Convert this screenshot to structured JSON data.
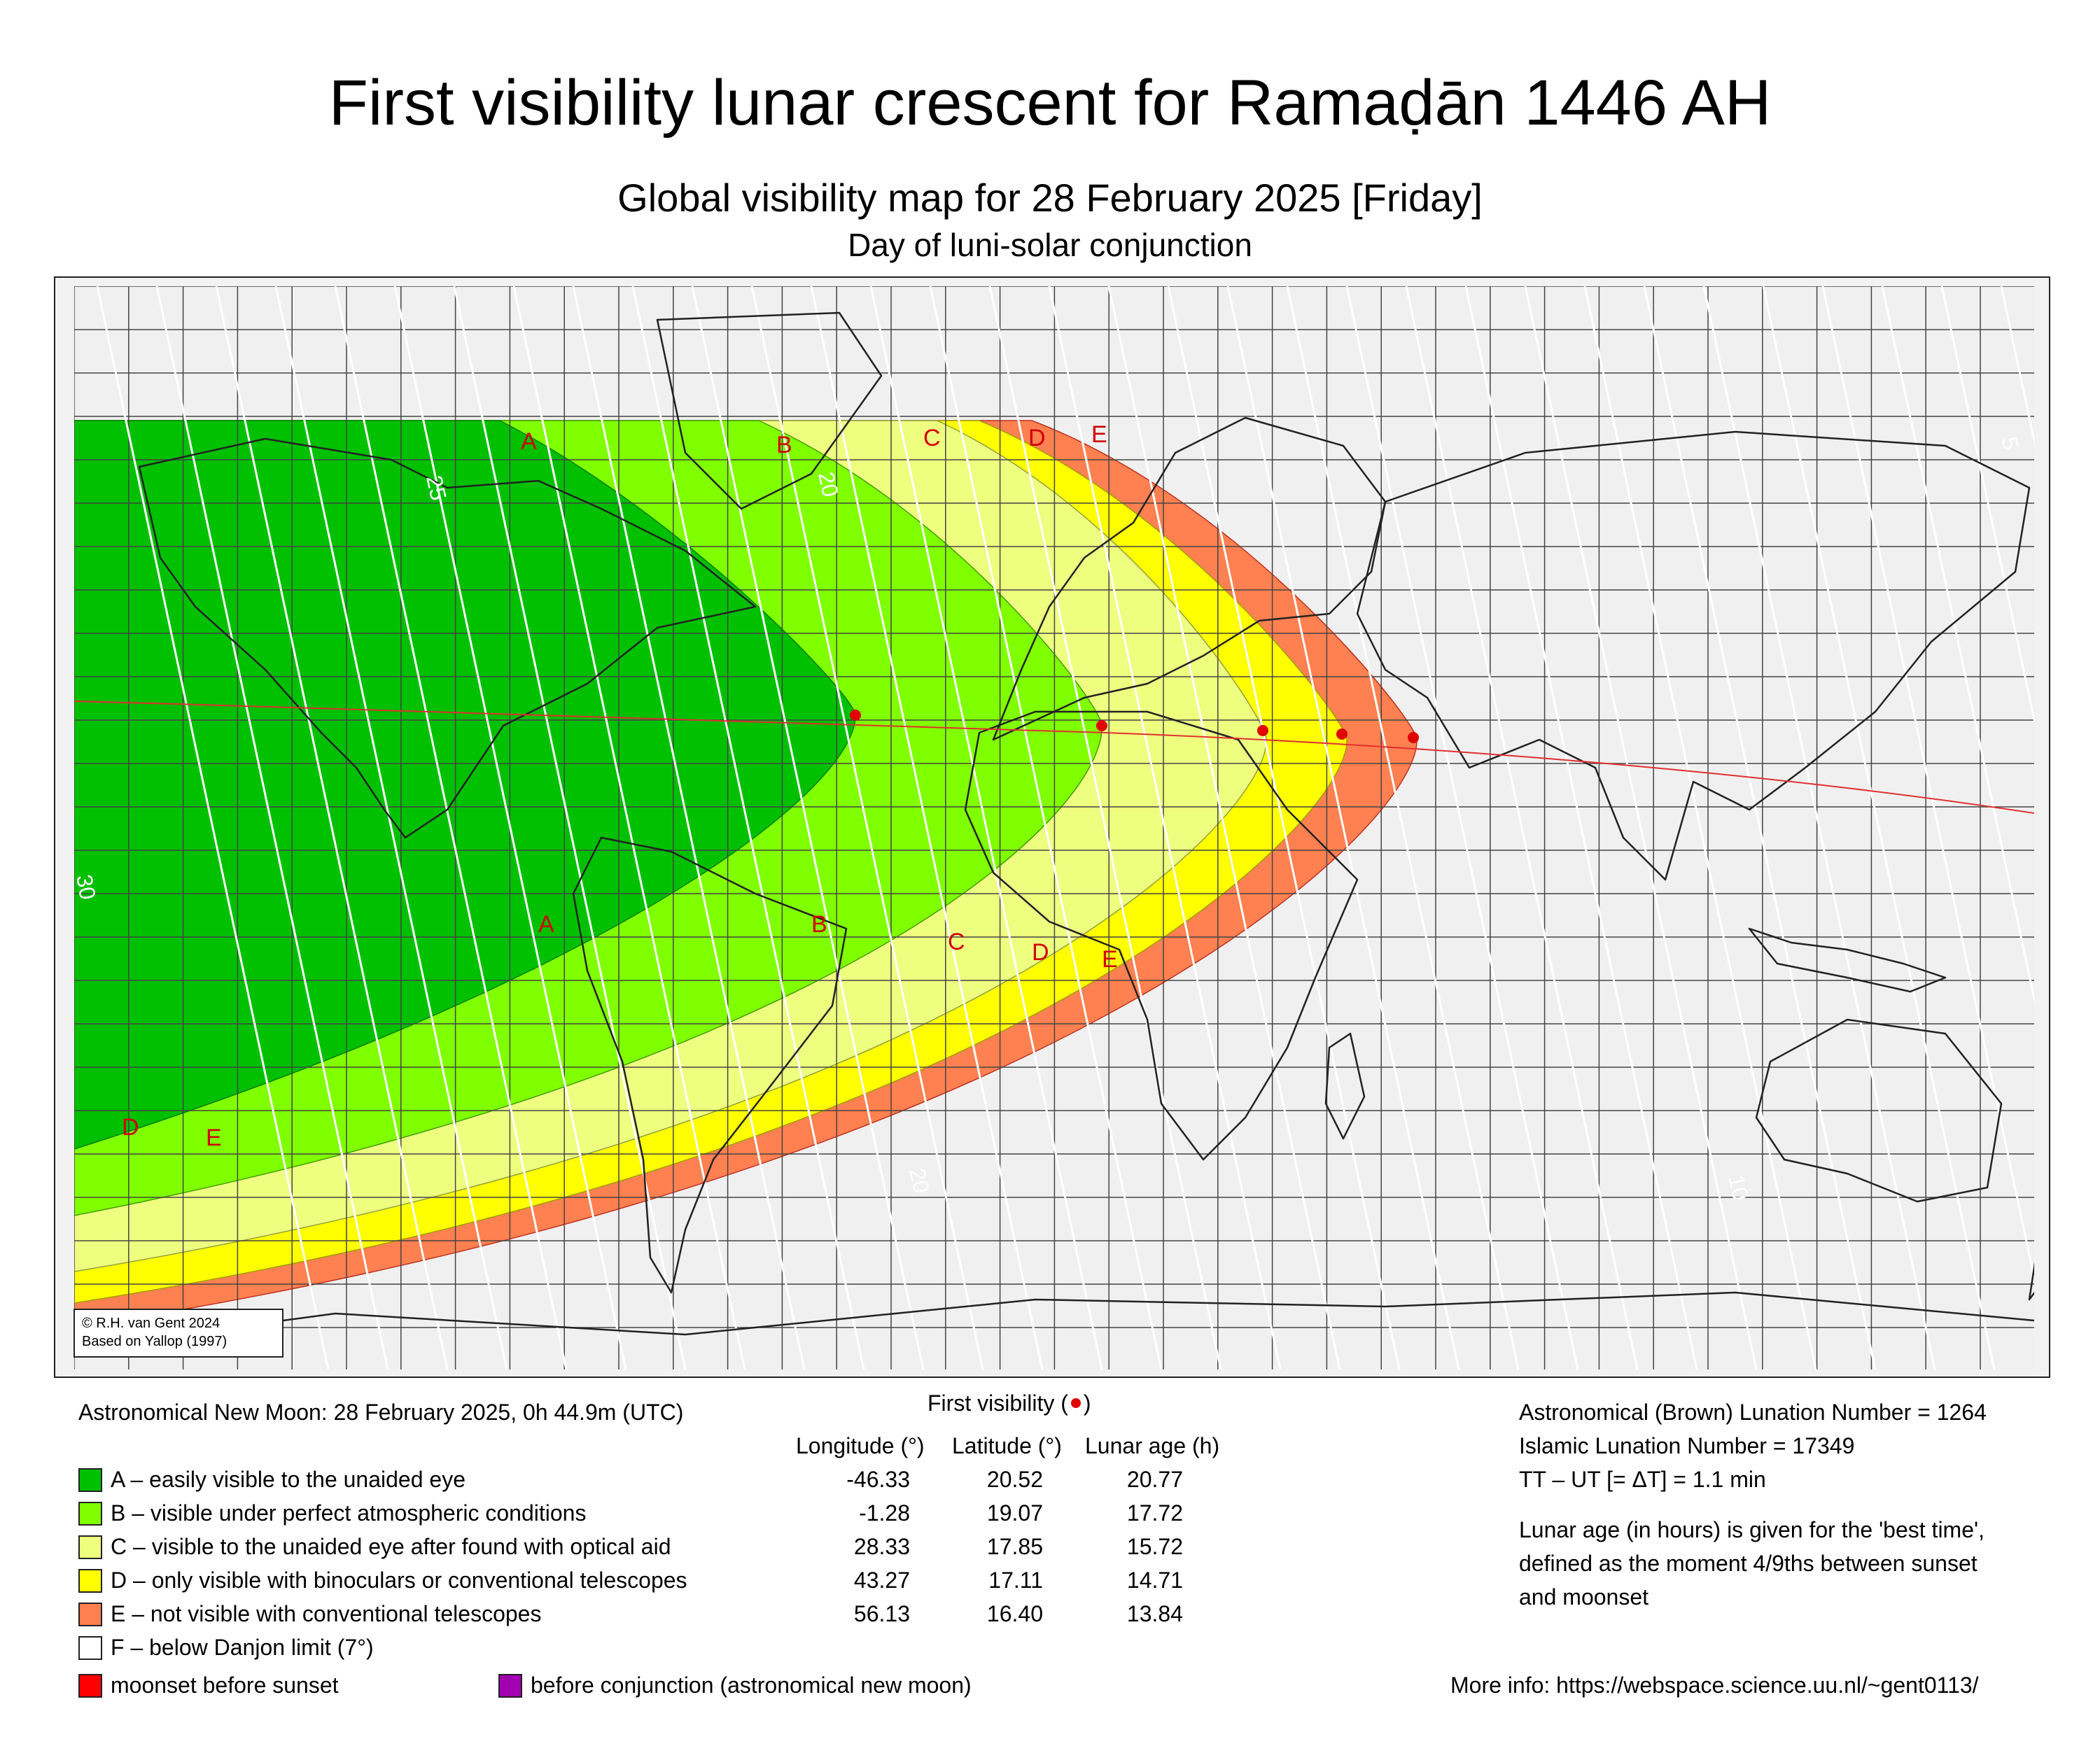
{
  "title": "First visibility lunar crescent for Ramaḍān 1446 AH",
  "subtitle": "Global visibility map for 28 February 2025 [Friday]",
  "subtitle2": "Day of luni-solar conjunction",
  "credit": {
    "line1": "© R.H. van Gent 2024",
    "line2": "Based on Yallop (1997)"
  },
  "new_moon": "Astronomical New Moon: 28 February 2025, 0h 44.9m (UTC)",
  "first_visibility_label": "First visibility (",
  "first_visibility_close": ")",
  "table_headers": {
    "longitude": "Longitude (°)",
    "latitude": "Latitude (°)",
    "age": "Lunar age (h)"
  },
  "legend": [
    {
      "label": "A – easily visible to the unaided eye",
      "color": "#00c000",
      "lon": "-46.33",
      "lat": "20.52",
      "age": "20.77"
    },
    {
      "label": "B – visible under perfect atmospheric conditions",
      "color": "#80ff00",
      "lon": "-1.28",
      "lat": "19.07",
      "age": "17.72"
    },
    {
      "label": "C – visible to the unaided eye after found with optical aid",
      "color": "#eeff80",
      "lon": "28.33",
      "lat": "17.85",
      "age": "15.72"
    },
    {
      "label": "D – only visible with binoculars or conventional telescopes",
      "color": "#ffff00",
      "lon": "43.27",
      "lat": "17.11",
      "age": "14.71"
    },
    {
      "label": "E – not visible with conventional telescopes",
      "color": "#ff8050",
      "lon": "56.13",
      "lat": "16.40",
      "age": "13.84"
    },
    {
      "label": "F – below Danjon limit (7°)",
      "color": "#ffffff"
    }
  ],
  "moonset_label": "moonset before sunset",
  "moonset_color": "#ff0000",
  "conjunction_label": "before conjunction (astronomical new moon)",
  "conjunction_color": "#a000b0",
  "right_info": {
    "brown": "Astronomical (Brown) Lunation Number = 1264",
    "islamic": "Islamic Lunation Number = 17349",
    "deltat": "TT – UT [= ΔT] = 1.1 min",
    "note1": "Lunar age (in hours) is given for the 'best time',",
    "note2": "defined as the moment 4/9ths between sunset",
    "note3": "and moonset",
    "more": "More info: https://webspace.science.uu.nl/~gent0113/"
  },
  "map": {
    "zone_letters": [
      "A",
      "B",
      "C",
      "D",
      "E"
    ],
    "isochrone_labels": [
      "25",
      "20",
      "30",
      "20",
      "10",
      "5"
    ],
    "dot_color": "#e00000"
  }
}
